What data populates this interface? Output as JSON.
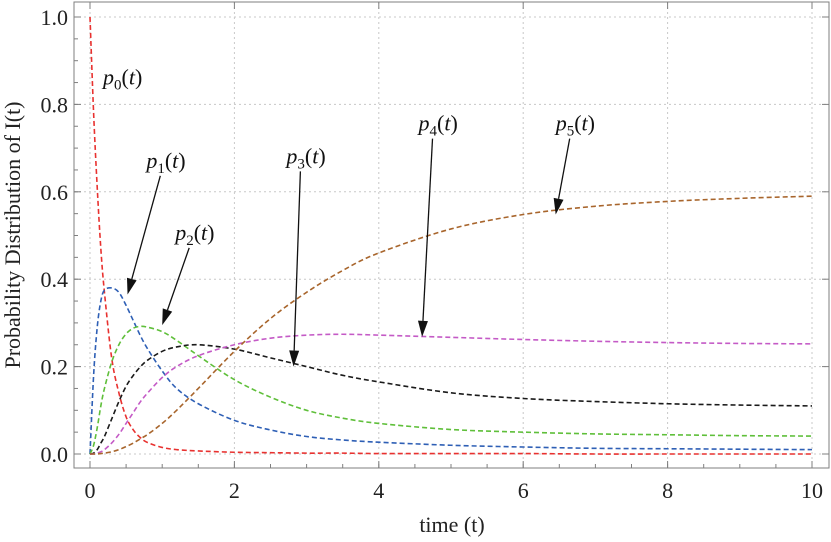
{
  "chart_data": {
    "type": "line",
    "xlabel": "time (t)",
    "ylabel": "Probability Distribution of  I(t)",
    "xlim": [
      0,
      10
    ],
    "ylim": [
      0,
      1.0
    ],
    "x_ticks": [
      "0",
      "2",
      "4",
      "6",
      "8",
      "10"
    ],
    "y_ticks": [
      "0.0",
      "0.2",
      "0.4",
      "0.6",
      "0.8",
      "1.0"
    ],
    "grid": true,
    "x": [
      0,
      0.05,
      0.1,
      0.15,
      0.2,
      0.3,
      0.4,
      0.5,
      0.6,
      0.7,
      0.8,
      1.0,
      1.2,
      1.5,
      2.0,
      2.5,
      3.0,
      3.5,
      4.0,
      5.0,
      6.0,
      7.0,
      8.0,
      9.0,
      10.0
    ],
    "series": [
      {
        "name": "p0(t)",
        "color": "#e8312f",
        "values": [
          1.0,
          0.78,
          0.61,
          0.47,
          0.37,
          0.22,
          0.14,
          0.085,
          0.055,
          0.037,
          0.026,
          0.015,
          0.01,
          0.007,
          0.004,
          0.003,
          0.002,
          0.002,
          0.001,
          0.001,
          0.001,
          0.0,
          0.0,
          0.0,
          0.0
        ]
      },
      {
        "name": "p1(t)",
        "color": "#2e5fb5",
        "values": [
          0.0,
          0.18,
          0.29,
          0.35,
          0.375,
          0.38,
          0.37,
          0.34,
          0.305,
          0.27,
          0.24,
          0.19,
          0.15,
          0.115,
          0.077,
          0.055,
          0.04,
          0.032,
          0.027,
          0.02,
          0.016,
          0.013,
          0.012,
          0.011,
          0.01
        ]
      },
      {
        "name": "p2(t)",
        "color": "#5fbf3a",
        "values": [
          0.0,
          0.02,
          0.06,
          0.11,
          0.15,
          0.21,
          0.25,
          0.275,
          0.288,
          0.292,
          0.29,
          0.28,
          0.26,
          0.225,
          0.17,
          0.13,
          0.1,
          0.082,
          0.07,
          0.056,
          0.05,
          0.046,
          0.044,
          0.042,
          0.041
        ]
      },
      {
        "name": "p3(t)",
        "color": "#1a1a1a",
        "values": [
          0.0,
          0.002,
          0.01,
          0.025,
          0.04,
          0.08,
          0.12,
          0.155,
          0.18,
          0.2,
          0.215,
          0.235,
          0.245,
          0.25,
          0.24,
          0.22,
          0.2,
          0.18,
          0.165,
          0.14,
          0.127,
          0.12,
          0.115,
          0.112,
          0.11
        ]
      },
      {
        "name": "p4(t)",
        "color": "#c45ac6",
        "values": [
          0.0,
          0.0,
          0.002,
          0.005,
          0.01,
          0.025,
          0.045,
          0.07,
          0.095,
          0.12,
          0.14,
          0.175,
          0.2,
          0.225,
          0.25,
          0.265,
          0.272,
          0.274,
          0.272,
          0.267,
          0.262,
          0.258,
          0.255,
          0.253,
          0.252
        ]
      },
      {
        "name": "p5(t)",
        "color": "#a8652c",
        "values": [
          0.0,
          0.0,
          0.0,
          0.001,
          0.002,
          0.005,
          0.01,
          0.017,
          0.025,
          0.035,
          0.045,
          0.07,
          0.1,
          0.15,
          0.235,
          0.31,
          0.37,
          0.42,
          0.46,
          0.515,
          0.548,
          0.567,
          0.578,
          0.585,
          0.59
        ]
      }
    ],
    "annotations": [
      {
        "series": "p0(t)",
        "label": "p",
        "sub": "0",
        "arg": "t",
        "label_x": 0.18,
        "label_y": 0.845,
        "arrow": false
      },
      {
        "series": "p1(t)",
        "label": "p",
        "sub": "1",
        "arg": "t",
        "label_x": 0.78,
        "label_y": 0.655,
        "arrow": true,
        "head_x": 0.52,
        "head_y": 0.365
      },
      {
        "series": "p2(t)",
        "label": "p",
        "sub": "2",
        "arg": "t",
        "label_x": 1.18,
        "label_y": 0.49,
        "arrow": true,
        "head_x": 1.0,
        "head_y": 0.295
      },
      {
        "series": "p3(t)",
        "label": "p",
        "sub": "3",
        "arg": "t",
        "label_x": 2.72,
        "label_y": 0.665,
        "arrow": true,
        "head_x": 2.82,
        "head_y": 0.2
      },
      {
        "series": "p4(t)",
        "label": "p",
        "sub": "4",
        "arg": "t",
        "label_x": 4.55,
        "label_y": 0.74,
        "arrow": true,
        "head_x": 4.6,
        "head_y": 0.268
      },
      {
        "series": "p5(t)",
        "label": "p",
        "sub": "5",
        "arg": "t",
        "label_x": 6.45,
        "label_y": 0.74,
        "arrow": true,
        "head_x": 6.45,
        "head_y": 0.548
      }
    ]
  }
}
